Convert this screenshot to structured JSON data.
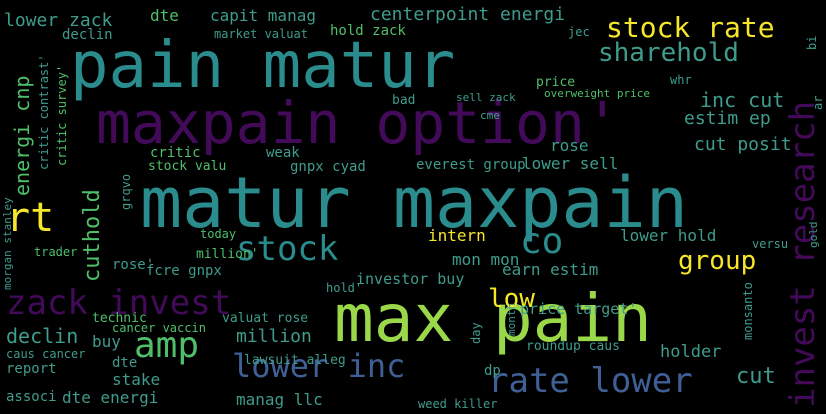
{
  "colors": {
    "background": "#000000",
    "teal": "#2a8c8c",
    "lightgreen": "#9ad84a",
    "green": "#4fbf6a",
    "purple": "#440a5a",
    "violet": "#48307a",
    "blue": "#3f5f96",
    "yellow": "#f5e62a"
  },
  "words": {
    "pain_matur": "pain matur",
    "maxpain_option": "maxpain option'",
    "matur_maxpain": "matur maxpain",
    "max_pain": "max pain",
    "zack_invest": "zack invest",
    "invest_research": "invest research",
    "stock_rate": "stock rate",
    "sharehold": "sharehold",
    "amp": "amp",
    "lower_inc": "lower inc",
    "rate_lower": "rate lower",
    "rt": "rt",
    "stock": "stock",
    "co": "co",
    "group": "group",
    "low": "low",
    "cuthold": "cuthold",
    "inc_cut": "inc cut",
    "estim_ep": "estim ep",
    "cut_posit": "cut posit",
    "energi_cnp": "energi cnp",
    "lower_zack": "lower zack",
    "capit_manag": "capit manag",
    "centerpoint_energi": "centerpoint energi",
    "dte": "dte",
    "declin": "declin",
    "buy": "buy",
    "million": "million",
    "stake": "stake",
    "dte_energi": "dte energi",
    "manag_llc": "manag llc",
    "cut": "cut",
    "holder": "holder",
    "earn_estim": "earn estim",
    "lower_hold": "lower hold",
    "price_target": "price target'",
    "intern": "intern",
    "mon_mon": "mon mon",
    "investor_buy": "investor buy",
    "weak": "weak",
    "lower_sell": "lower sell",
    "everest_group": "everest group",
    "rose": "rose",
    "critic": "critic",
    "stock_valu": "stock valu",
    "gnpx_cyad": "gnpx cyad",
    "fcre_gnpx": "fcre gnpx",
    "cancer_vaccin": "cancer vaccin",
    "valuat_rose": "valuat rose",
    "lawsuit_alleg": "lawsuit alleg",
    "technic": "technic",
    "hold_zack": "hold zack",
    "market_valuat": "market valuat",
    "bad": "bad",
    "sell_zack": "sell zack",
    "price": "price",
    "overweight_price": "overweight price",
    "roundup_caus": "roundup caus",
    "report": "report",
    "caus_cancer": "caus cancer",
    "assoc": "associ",
    "trader": "trader",
    "critic_contrast": "critic contrast'",
    "critic_survey": "critic survey'",
    "morgan_stanley": "morgan stanley",
    "monsanto": "monsanto",
    "weed_killer": "weed killer",
    "rose2": "rose'",
    "million2": "million'",
    "today": "today",
    "hold2": "hold'",
    "day": "day",
    "dp": "dp",
    "month": "month",
    "cme": "cme",
    "jec": "jec",
    "whr": "whr",
    "versu": "versu",
    "grqvo": "grqvo",
    "bi": "bi",
    "ar": "ar",
    "gold": "gold"
  }
}
